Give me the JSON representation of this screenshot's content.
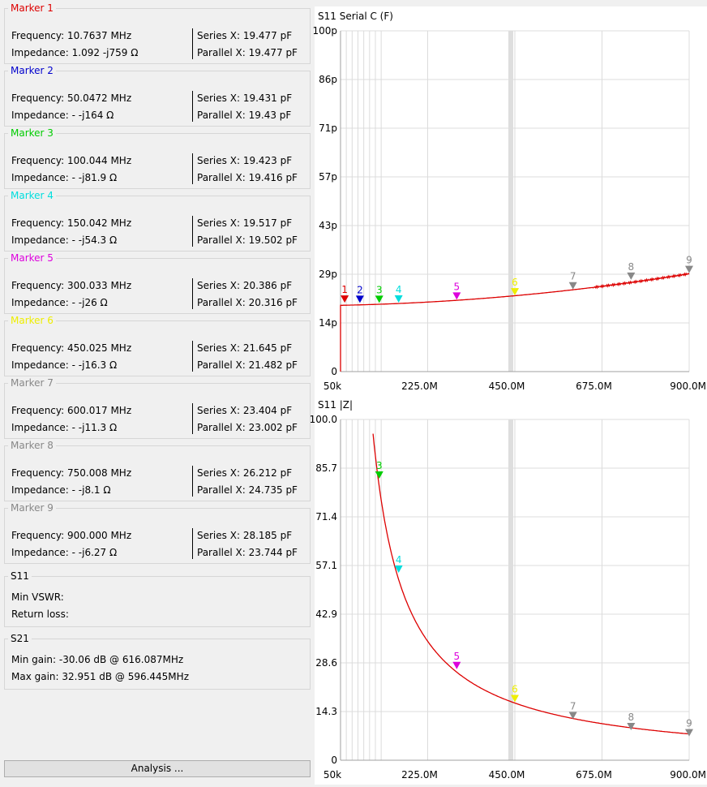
{
  "markers": [
    {
      "title": "Marker 1",
      "color": "#dd0000",
      "frequency_label": "Frequency:",
      "frequency": "10.7637 MHz",
      "impedance_label": "Impedance:",
      "impedance": "1.092 -j759 Ω",
      "series_label": "Series X:",
      "series": "19.477 pF",
      "parallel_label": "Parallel X:",
      "parallel": "19.477 pF"
    },
    {
      "title": "Marker 2",
      "color": "#0000cc",
      "frequency_label": "Frequency:",
      "frequency": "50.0472 MHz",
      "impedance_label": "Impedance:",
      "impedance": "- -j164 Ω",
      "series_label": "Series X:",
      "series": "19.431 pF",
      "parallel_label": "Parallel X:",
      "parallel": "19.43 pF"
    },
    {
      "title": "Marker 3",
      "color": "#00cc00",
      "frequency_label": "Frequency:",
      "frequency": "100.044 MHz",
      "impedance_label": "Impedance:",
      "impedance": "- -j81.9 Ω",
      "series_label": "Series X:",
      "series": "19.423 pF",
      "parallel_label": "Parallel X:",
      "parallel": "19.416 pF"
    },
    {
      "title": "Marker 4",
      "color": "#00dddd",
      "frequency_label": "Frequency:",
      "frequency": "150.042 MHz",
      "impedance_label": "Impedance:",
      "impedance": "- -j54.3 Ω",
      "series_label": "Series X:",
      "series": "19.517 pF",
      "parallel_label": "Parallel X:",
      "parallel": "19.502 pF"
    },
    {
      "title": "Marker 5",
      "color": "#dd00dd",
      "frequency_label": "Frequency:",
      "frequency": "300.033 MHz",
      "impedance_label": "Impedance:",
      "impedance": "- -j26 Ω",
      "series_label": "Series X:",
      "series": "20.386 pF",
      "parallel_label": "Parallel X:",
      "parallel": "20.316 pF"
    },
    {
      "title": "Marker 6",
      "color": "#eeee00",
      "frequency_label": "Frequency:",
      "frequency": "450.025 MHz",
      "impedance_label": "Impedance:",
      "impedance": "- -j16.3 Ω",
      "series_label": "Series X:",
      "series": "21.645 pF",
      "parallel_label": "Parallel X:",
      "parallel": "21.482 pF"
    },
    {
      "title": "Marker 7",
      "color": "#888888",
      "frequency_label": "Frequency:",
      "frequency": "600.017 MHz",
      "impedance_label": "Impedance:",
      "impedance": "- -j11.3 Ω",
      "series_label": "Series X:",
      "series": "23.404 pF",
      "parallel_label": "Parallel X:",
      "parallel": "23.002 pF"
    },
    {
      "title": "Marker 8",
      "color": "#888888",
      "frequency_label": "Frequency:",
      "frequency": "750.008 MHz",
      "impedance_label": "Impedance:",
      "impedance": "- -j8.1 Ω",
      "series_label": "Series X:",
      "series": "26.212 pF",
      "parallel_label": "Parallel X:",
      "parallel": "24.735 pF"
    },
    {
      "title": "Marker 9",
      "color": "#888888",
      "frequency_label": "Frequency:",
      "frequency": "900.000 MHz",
      "impedance_label": "Impedance:",
      "impedance": "- -j6.27 Ω",
      "series_label": "Series X:",
      "series": "28.185 pF",
      "parallel_label": "Parallel X:",
      "parallel": "23.744 pF"
    }
  ],
  "s11": {
    "title": "S11",
    "min_vswr_label": "Min VSWR:",
    "min_vswr": "",
    "return_loss_label": "Return loss:",
    "return_loss": ""
  },
  "s21": {
    "title": "S21",
    "min_gain_label": "Min gain:",
    "min_gain": "-30.06 dB @ 616.087MHz",
    "max_gain_label": "Max gain:",
    "max_gain": "32.951 dB @ 596.445MHz"
  },
  "analysis_button": "Analysis ...",
  "trace_color": "#dd0000",
  "chart_data": [
    {
      "type": "line",
      "title": "S11  Serial C (F)",
      "y_ticks": [
        "100p",
        "86p",
        "71p",
        "57p",
        "43p",
        "29p",
        "14p",
        "0"
      ],
      "x_ticks": [
        "50k",
        "225.0M",
        "450.0M",
        "675.0M",
        "900.0M"
      ],
      "ylim": [
        0,
        100
      ],
      "xlim": [
        0.05,
        900
      ],
      "grid": true,
      "series": [
        {
          "x": [
            0.05,
            10.76,
            50.05,
            100.04,
            150.04,
            300.03,
            450.03,
            600.02,
            750.01,
            900.0
          ],
          "y": [
            19.48,
            19.48,
            19.43,
            19.42,
            19.52,
            20.39,
            21.65,
            23.4,
            26.21,
            28.19
          ]
        }
      ],
      "markers": [
        {
          "label": "1",
          "x": 10.76,
          "y": 19.48
        },
        {
          "label": "2",
          "x": 50.05,
          "y": 19.43
        },
        {
          "label": "3",
          "x": 100.04,
          "y": 19.42
        },
        {
          "label": "4",
          "x": 150.04,
          "y": 19.52
        },
        {
          "label": "5",
          "x": 300.03,
          "y": 20.39
        },
        {
          "label": "6",
          "x": 450.03,
          "y": 21.65
        },
        {
          "label": "7",
          "x": 600.02,
          "y": 23.4
        },
        {
          "label": "8",
          "x": 750.01,
          "y": 26.21
        },
        {
          "label": "9",
          "x": 900.0,
          "y": 28.19
        }
      ]
    },
    {
      "type": "line",
      "title": "S11  |Z|",
      "y_ticks": [
        "100.0",
        "85.7",
        "71.4",
        "57.1",
        "42.9",
        "28.6",
        "14.3",
        "0"
      ],
      "x_ticks": [
        "50k",
        "225.0M",
        "450.0M",
        "675.0M",
        "900.0M"
      ],
      "ylim": [
        0,
        100
      ],
      "xlim": [
        0.05,
        900
      ],
      "grid": true,
      "series": [
        {
          "x": [
            100.04,
            150.04,
            300.03,
            450.03,
            600.02,
            750.01,
            900.0
          ],
          "y": [
            81.9,
            54.3,
            26.0,
            16.3,
            11.3,
            8.1,
            6.27
          ]
        }
      ],
      "markers": [
        {
          "label": "3",
          "x": 100.04,
          "y": 81.9
        },
        {
          "label": "4",
          "x": 150.04,
          "y": 54.3
        },
        {
          "label": "5",
          "x": 300.03,
          "y": 26.0
        },
        {
          "label": "6",
          "x": 450.03,
          "y": 16.3
        },
        {
          "label": "7",
          "x": 600.02,
          "y": 11.3
        },
        {
          "label": "8",
          "x": 750.01,
          "y": 8.1
        },
        {
          "label": "9",
          "x": 900.0,
          "y": 6.27
        }
      ]
    }
  ]
}
